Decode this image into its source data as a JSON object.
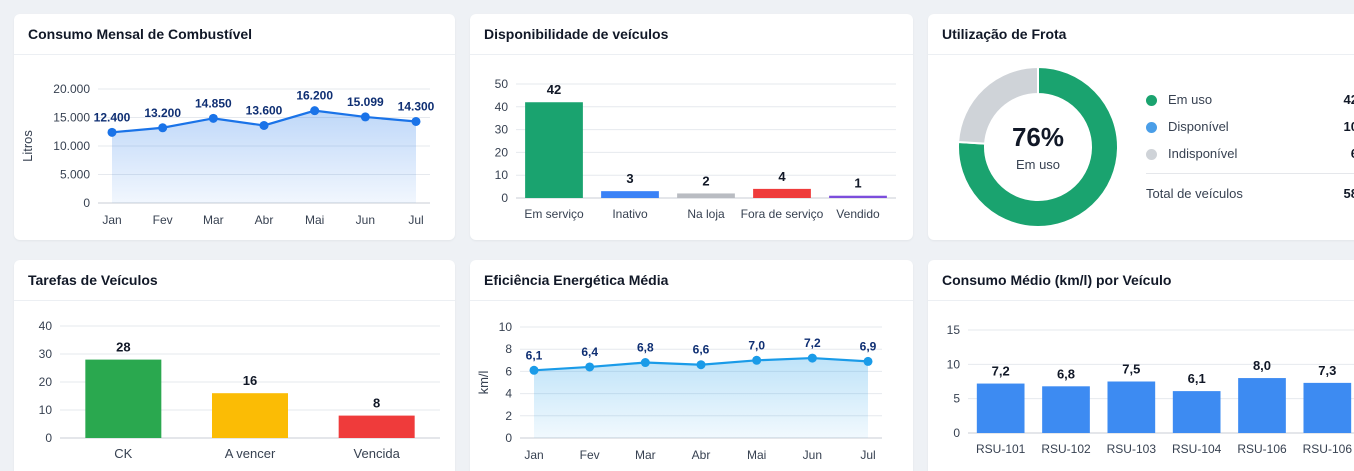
{
  "cards": {
    "fuel": {
      "title": "Consumo Mensal de Combustível",
      "chart_data": {
        "type": "area",
        "title": "Consumo Mensal de Combustível",
        "categories": [
          "Jan",
          "Fev",
          "Mar",
          "Abr",
          "Mai",
          "Jun",
          "Jul"
        ],
        "values": [
          12400,
          13200,
          14850,
          13600,
          16200,
          15099,
          14300
        ],
        "value_labels": [
          "12.400",
          "13.200",
          "14.850",
          "13.600",
          "16.200",
          "15.099",
          "14.300"
        ],
        "ylabel": "Litros",
        "ylim": [
          0,
          20000
        ],
        "yticks": [
          0,
          5000,
          10000,
          15000,
          20000
        ],
        "ytick_labels": [
          "0",
          "5.000",
          "10.000",
          "15.000",
          "20.000"
        ],
        "grid": true,
        "color": "#1a73e8"
      }
    },
    "availability": {
      "title": "Disponibilidade de veículos",
      "chart_data": {
        "type": "bar",
        "title": "Disponibilidade de veículos",
        "categories": [
          "Em serviço",
          "Inativo",
          "Na loja",
          "Fora de serviço",
          "Vendido"
        ],
        "values": [
          42,
          3,
          2,
          4,
          1
        ],
        "colors": [
          "#1aa36f",
          "#3b82f6",
          "#b9bcc2",
          "#ef3b3b",
          "#7c4ddc"
        ],
        "ylim": [
          0,
          50
        ],
        "yticks": [
          0,
          10,
          20,
          30,
          40,
          50
        ],
        "grid": true
      }
    },
    "fleet": {
      "title": "Utilização de Frota",
      "center_value": "76%",
      "center_label": "Em uso",
      "total_label": "Total de veículos",
      "total_value": "58",
      "chart_data": {
        "type": "pie",
        "title": "Utilização de Frota",
        "labels": [
          "Em uso",
          "Disponível",
          "Indisponível"
        ],
        "values": [
          42,
          10,
          6
        ],
        "colors": [
          "#1aa36f",
          "#4a9ee8",
          "#cfd3d8"
        ],
        "donut": true,
        "ring_values": [
          76,
          24
        ],
        "ring_colors": [
          "#1aa36f",
          "#cfd3d8"
        ]
      }
    },
    "tasks": {
      "title": "Tarefas de Veículos",
      "chart_data": {
        "type": "bar",
        "title": "Tarefas de Veículos",
        "categories": [
          "CK",
          "A vencer",
          "Vencida"
        ],
        "values": [
          28,
          16,
          8
        ],
        "colors": [
          "#2aa84f",
          "#fbbc05",
          "#ef3b3b"
        ],
        "ylim": [
          0,
          40
        ],
        "yticks": [
          0,
          10,
          20,
          30,
          40
        ],
        "grid": true
      }
    },
    "efficiency": {
      "title": "Eficiência Energética Média",
      "chart_data": {
        "type": "area",
        "title": "Eficiência Energética Média",
        "categories": [
          "Jan",
          "Fev",
          "Mar",
          "Abr",
          "Mai",
          "Jun",
          "Jul"
        ],
        "values": [
          6.1,
          6.4,
          6.8,
          6.6,
          7.0,
          7.2,
          6.9
        ],
        "value_labels": [
          "6,1",
          "6,4",
          "6,8",
          "6,6",
          "7,0",
          "7,2",
          "6,9"
        ],
        "ylabel": "km/l",
        "ylim": [
          0,
          10
        ],
        "yticks": [
          0,
          2,
          4,
          6,
          8,
          10
        ],
        "ytick_labels": [
          "0",
          "2",
          "4",
          "6",
          "8",
          "10"
        ],
        "grid": true,
        "color": "#1a9be8"
      }
    },
    "consumption": {
      "title": "Consumo Médio (km/l) por Veículo",
      "chart_data": {
        "type": "bar",
        "title": "Consumo Médio (km/l) por Veículo",
        "categories": [
          "RSU-101",
          "RSU-102",
          "RSU-103",
          "RSU-104",
          "RSU-106",
          "RSU-106"
        ],
        "values": [
          7.2,
          6.8,
          7.5,
          6.1,
          8.0,
          7.3
        ],
        "value_labels": [
          "7,2",
          "6,8",
          "7,5",
          "6,1",
          "8,0",
          "7,3"
        ],
        "colors": [
          "#3d8bf2",
          "#3d8bf2",
          "#3d8bf2",
          "#3d8bf2",
          "#3d8bf2",
          "#3d8bf2"
        ],
        "ylim": [
          0,
          15
        ],
        "yticks": [
          0,
          5,
          10,
          15
        ],
        "grid": true
      }
    }
  }
}
